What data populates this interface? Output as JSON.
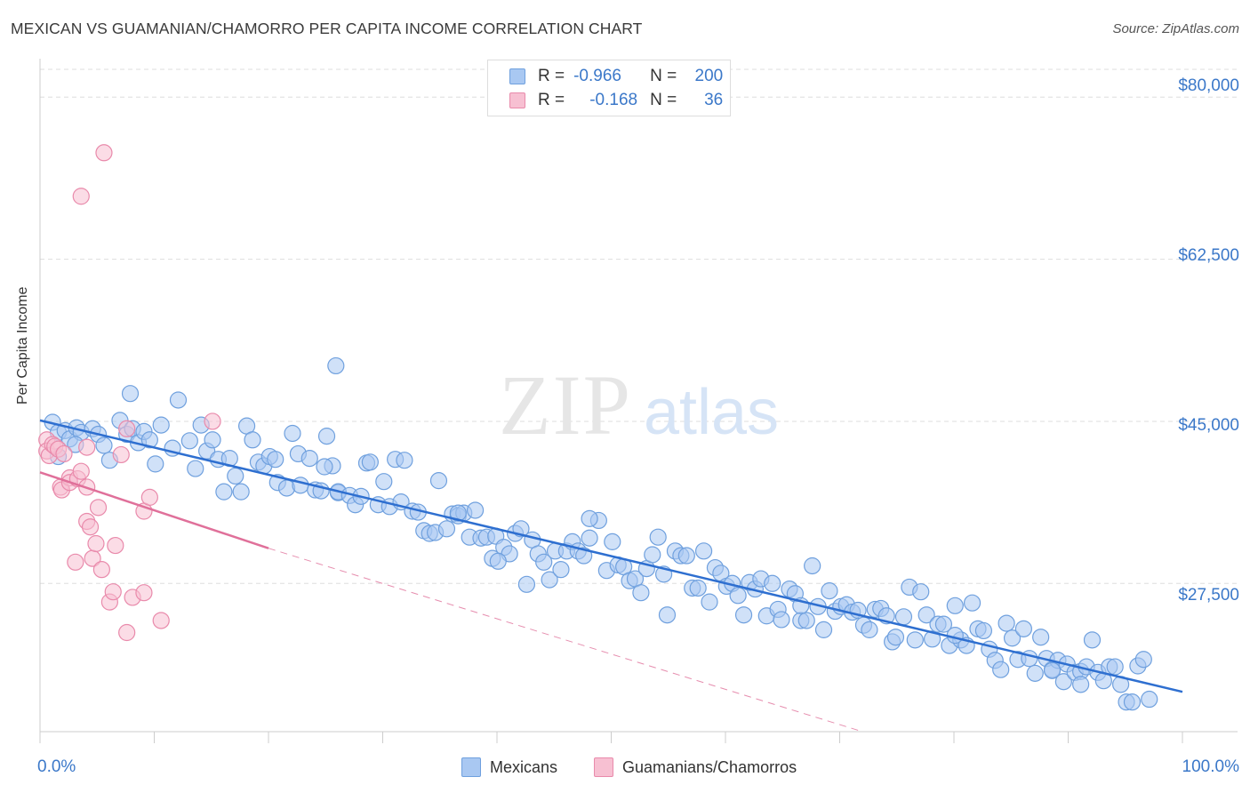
{
  "title": "MEXICAN VS GUAMANIAN/CHAMORRO PER CAPITA INCOME CORRELATION CHART",
  "source": "Source: ZipAtlas.com",
  "watermark": {
    "zip": "ZIP",
    "atlas": "atlas"
  },
  "legend": {
    "series": [
      {
        "r_label": "R =",
        "r_value": "-0.966",
        "n_label": "N =",
        "n_value": "200"
      },
      {
        "r_label": "R =",
        "r_value": "-0.168",
        "n_label": "N =",
        "n_value": "36"
      }
    ]
  },
  "bottom_legend": {
    "mexicans": "Mexicans",
    "guamanians": "Guamanians/Chamorros"
  },
  "colors": {
    "blue_fill": "#a9c8f2",
    "blue_stroke": "#6fa0de",
    "blue_line": "#2e6fd0",
    "pink_fill": "#f7c0d2",
    "pink_stroke": "#e98aab",
    "pink_line": "#e0709a",
    "tick_text": "#3b78c9",
    "grid": "#dddddd"
  },
  "chart_data": {
    "type": "scatter",
    "title": "MEXICAN VS GUAMANIAN/CHAMORRO PER CAPITA INCOME CORRELATION CHART",
    "xlabel": "",
    "ylabel": "Per Capita Income",
    "x_tick_labels": [
      "0.0%",
      "100.0%"
    ],
    "y_tick_labels": [
      "$80,000",
      "$62,500",
      "$45,000",
      "$27,500"
    ],
    "y_ticks": [
      80000,
      62500,
      45000,
      27500
    ],
    "xlim": [
      0,
      100
    ],
    "ylim": [
      11500,
      83000
    ],
    "grid": true,
    "series": [
      {
        "name": "Mexicans",
        "r": -0.966,
        "n": 200,
        "trend": {
          "x": [
            0,
            100
          ],
          "y": [
            45100,
            15800
          ]
        },
        "points": [
          [
            1.1,
            44.9
          ],
          [
            1.6,
            43.8
          ],
          [
            2.2,
            44.0
          ],
          [
            2.6,
            43.1
          ],
          [
            3.2,
            44.3
          ],
          [
            3.6,
            43.8
          ],
          [
            1.6,
            41.2
          ],
          [
            3.1,
            42.5
          ],
          [
            4.6,
            44.2
          ],
          [
            5.1,
            43.6
          ],
          [
            5.6,
            42.4
          ],
          [
            6.1,
            40.8
          ],
          [
            7.0,
            45.1
          ],
          [
            7.6,
            43.6
          ],
          [
            8.1,
            44.2
          ],
          [
            7.9,
            48.0
          ],
          [
            8.6,
            42.7
          ],
          [
            9.1,
            43.9
          ],
          [
            9.6,
            43.0
          ],
          [
            10.1,
            40.4
          ],
          [
            10.6,
            44.6
          ],
          [
            11.6,
            42.1
          ],
          [
            12.1,
            47.3
          ],
          [
            13.1,
            42.9
          ],
          [
            13.6,
            39.9
          ],
          [
            14.1,
            44.6
          ],
          [
            14.6,
            41.8
          ],
          [
            15.1,
            43.0
          ],
          [
            15.6,
            40.9
          ],
          [
            16.1,
            37.4
          ],
          [
            16.6,
            41.0
          ],
          [
            17.1,
            39.1
          ],
          [
            17.6,
            37.4
          ],
          [
            18.1,
            44.5
          ],
          [
            18.6,
            43.0
          ],
          [
            19.1,
            40.6
          ],
          [
            19.6,
            40.2
          ],
          [
            20.1,
            41.2
          ],
          [
            20.6,
            40.9
          ],
          [
            20.8,
            38.4
          ],
          [
            21.6,
            37.8
          ],
          [
            22.1,
            43.7
          ],
          [
            22.6,
            41.5
          ],
          [
            22.8,
            38.1
          ],
          [
            23.6,
            41.0
          ],
          [
            24.1,
            37.6
          ],
          [
            24.6,
            37.5
          ],
          [
            25.1,
            43.4
          ],
          [
            25.6,
            40.2
          ],
          [
            26.1,
            37.3
          ],
          [
            25.9,
            51.0
          ],
          [
            26.1,
            37.4
          ],
          [
            27.1,
            37.0
          ],
          [
            27.6,
            36.0
          ],
          [
            28.1,
            36.9
          ],
          [
            28.6,
            40.5
          ],
          [
            28.9,
            40.6
          ],
          [
            29.6,
            36.0
          ],
          [
            30.1,
            38.5
          ],
          [
            30.6,
            35.8
          ],
          [
            31.1,
            40.9
          ],
          [
            31.6,
            36.3
          ],
          [
            31.9,
            40.8
          ],
          [
            32.6,
            35.3
          ],
          [
            33.1,
            35.2
          ],
          [
            33.6,
            33.2
          ],
          [
            34.1,
            32.9
          ],
          [
            34.6,
            33.0
          ],
          [
            34.9,
            38.6
          ],
          [
            35.6,
            33.4
          ],
          [
            36.1,
            35.0
          ],
          [
            36.6,
            34.8
          ],
          [
            37.1,
            35.1
          ],
          [
            37.6,
            32.5
          ],
          [
            38.1,
            35.4
          ],
          [
            38.6,
            32.4
          ],
          [
            39.1,
            32.5
          ],
          [
            39.6,
            30.2
          ],
          [
            39.9,
            32.6
          ],
          [
            40.6,
            31.4
          ],
          [
            41.1,
            30.7
          ],
          [
            41.6,
            32.9
          ],
          [
            42.1,
            33.4
          ],
          [
            42.6,
            27.4
          ],
          [
            43.1,
            32.2
          ],
          [
            43.6,
            30.7
          ],
          [
            44.1,
            29.8
          ],
          [
            44.6,
            27.9
          ],
          [
            45.1,
            31.0
          ],
          [
            45.6,
            29.0
          ],
          [
            46.1,
            31.0
          ],
          [
            46.6,
            32.0
          ],
          [
            47.1,
            31.0
          ],
          [
            47.6,
            30.5
          ],
          [
            48.1,
            32.4
          ],
          [
            48.9,
            34.3
          ],
          [
            49.6,
            28.9
          ],
          [
            50.1,
            32.0
          ],
          [
            50.6,
            29.5
          ],
          [
            51.1,
            29.3
          ],
          [
            51.6,
            27.8
          ],
          [
            52.1,
            28.0
          ],
          [
            52.6,
            26.5
          ],
          [
            53.1,
            29.1
          ],
          [
            53.6,
            30.6
          ],
          [
            54.1,
            32.5
          ],
          [
            54.6,
            28.5
          ],
          [
            54.9,
            24.1
          ],
          [
            55.6,
            31.0
          ],
          [
            56.1,
            30.5
          ],
          [
            56.6,
            30.5
          ],
          [
            57.1,
            27.0
          ],
          [
            57.6,
            27.0
          ],
          [
            58.1,
            31.0
          ],
          [
            58.6,
            25.5
          ],
          [
            59.1,
            29.2
          ],
          [
            59.6,
            28.6
          ],
          [
            60.1,
            27.2
          ],
          [
            60.6,
            27.5
          ],
          [
            61.1,
            26.2
          ],
          [
            61.6,
            24.1
          ],
          [
            62.1,
            27.6
          ],
          [
            62.6,
            26.9
          ],
          [
            63.1,
            28.0
          ],
          [
            63.6,
            24.0
          ],
          [
            64.1,
            27.5
          ],
          [
            64.6,
            24.7
          ],
          [
            64.9,
            23.6
          ],
          [
            65.6,
            26.9
          ],
          [
            66.1,
            26.4
          ],
          [
            66.6,
            23.5
          ],
          [
            67.1,
            23.5
          ],
          [
            67.6,
            29.4
          ],
          [
            68.1,
            25.0
          ],
          [
            68.6,
            22.5
          ],
          [
            69.1,
            26.7
          ],
          [
            69.6,
            24.5
          ],
          [
            70.1,
            25.0
          ],
          [
            70.6,
            25.2
          ],
          [
            71.1,
            24.4
          ],
          [
            71.6,
            24.6
          ],
          [
            72.1,
            23.0
          ],
          [
            72.6,
            22.5
          ],
          [
            73.1,
            24.7
          ],
          [
            73.6,
            24.8
          ],
          [
            74.1,
            24.0
          ],
          [
            74.6,
            21.2
          ],
          [
            74.9,
            21.7
          ],
          [
            75.6,
            23.9
          ],
          [
            76.1,
            27.1
          ],
          [
            76.6,
            21.4
          ],
          [
            77.1,
            26.6
          ],
          [
            77.6,
            24.1
          ],
          [
            78.1,
            21.5
          ],
          [
            78.6,
            23.1
          ],
          [
            79.1,
            23.1
          ],
          [
            79.6,
            20.8
          ],
          [
            80.1,
            25.1
          ],
          [
            80.6,
            21.4
          ],
          [
            81.1,
            20.8
          ],
          [
            81.6,
            25.4
          ],
          [
            82.1,
            22.6
          ],
          [
            82.6,
            22.4
          ],
          [
            83.1,
            20.4
          ],
          [
            83.6,
            19.2
          ],
          [
            84.1,
            18.2
          ],
          [
            84.6,
            23.2
          ],
          [
            85.1,
            21.6
          ],
          [
            85.6,
            19.3
          ],
          [
            86.1,
            22.6
          ],
          [
            86.6,
            19.4
          ],
          [
            87.1,
            17.8
          ],
          [
            87.6,
            21.7
          ],
          [
            88.1,
            19.4
          ],
          [
            88.6,
            18.2
          ],
          [
            89.1,
            19.2
          ],
          [
            89.6,
            16.9
          ],
          [
            89.9,
            18.8
          ],
          [
            90.6,
            17.9
          ],
          [
            91.1,
            18.0
          ],
          [
            91.6,
            18.5
          ],
          [
            92.1,
            21.4
          ],
          [
            92.6,
            17.9
          ],
          [
            93.1,
            17.0
          ],
          [
            93.6,
            18.5
          ],
          [
            94.1,
            18.5
          ],
          [
            94.6,
            16.6
          ],
          [
            95.1,
            14.7
          ],
          [
            95.6,
            14.7
          ],
          [
            96.1,
            18.6
          ],
          [
            96.6,
            19.3
          ],
          [
            97.1,
            15.0
          ],
          [
            24.9,
            40.1
          ],
          [
            48.1,
            34.5
          ],
          [
            36.6,
            35.1
          ],
          [
            66.6,
            25.1
          ],
          [
            40.1,
            29.9
          ],
          [
            88.6,
            18.1
          ],
          [
            91.1,
            16.6
          ],
          [
            80.1,
            21.9
          ]
        ]
      },
      {
        "name": "Guamanians/Chamorros",
        "r": -0.168,
        "n": 36,
        "trend": {
          "x": [
            0,
            20
          ],
          "y": [
            39500,
            31300
          ]
        },
        "trend_dashed": {
          "x": [
            20,
            72
          ],
          "y": [
            31300,
            11500
          ]
        },
        "points": [
          [
            0.6,
            43.0
          ],
          [
            0.6,
            41.8
          ],
          [
            0.8,
            41.3
          ],
          [
            1.1,
            42.5
          ],
          [
            1.3,
            42.3
          ],
          [
            1.6,
            42.0
          ],
          [
            1.8,
            37.9
          ],
          [
            2.1,
            41.5
          ],
          [
            1.9,
            37.6
          ],
          [
            2.6,
            38.9
          ],
          [
            2.6,
            38.4
          ],
          [
            3.1,
            29.8
          ],
          [
            3.3,
            38.8
          ],
          [
            3.6,
            39.6
          ],
          [
            4.1,
            42.2
          ],
          [
            3.6,
            69.3
          ],
          [
            4.1,
            37.9
          ],
          [
            4.1,
            34.2
          ],
          [
            4.4,
            33.6
          ],
          [
            4.6,
            30.2
          ],
          [
            4.9,
            31.8
          ],
          [
            5.1,
            35.7
          ],
          [
            5.4,
            29.0
          ],
          [
            5.6,
            74.0
          ],
          [
            6.1,
            25.5
          ],
          [
            6.4,
            26.6
          ],
          [
            6.6,
            31.6
          ],
          [
            7.1,
            41.4
          ],
          [
            7.6,
            44.2
          ],
          [
            7.6,
            22.2
          ],
          [
            8.1,
            26.0
          ],
          [
            9.1,
            26.5
          ],
          [
            9.1,
            35.3
          ],
          [
            9.6,
            36.8
          ],
          [
            10.6,
            23.5
          ],
          [
            15.1,
            45.0
          ]
        ]
      }
    ]
  }
}
